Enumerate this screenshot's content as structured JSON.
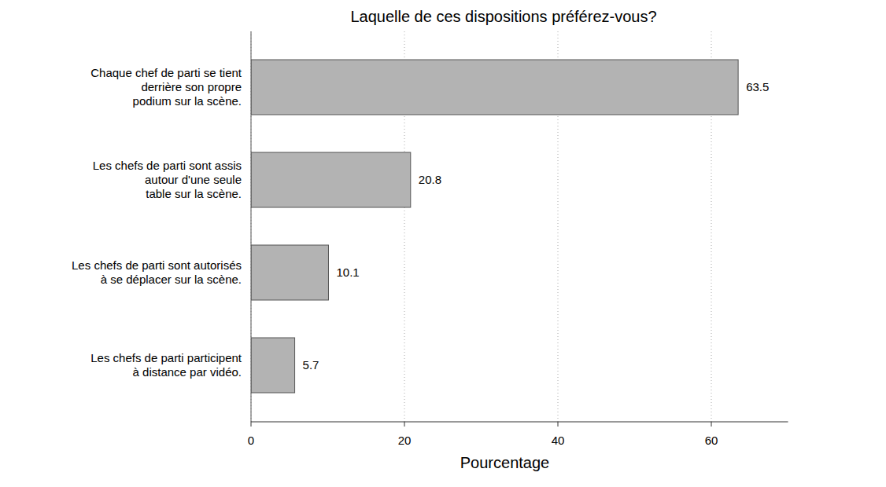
{
  "chart_data": {
    "type": "bar",
    "orientation": "horizontal",
    "title": "Laquelle de ces dispositions préférez-vous?",
    "x_label": "Pourcentage",
    "categories": [
      "Chaque chef de parti se tient\nderrière son propre\npodium sur la scène.",
      "Les chefs de parti sont assis\nautour d'une seule\ntable sur la scène.",
      "Les chefs de parti sont autorisés\nà se déplacer sur la scène.",
      "Les chefs de parti participent\nà distance par vidéo."
    ],
    "values": [
      63.5,
      20.8,
      10.1,
      5.7
    ],
    "color": "#b3b3b3",
    "xlim": [
      0,
      70
    ],
    "xticks": [
      0,
      20,
      40,
      60
    ],
    "grid": true,
    "data_labels": true
  }
}
